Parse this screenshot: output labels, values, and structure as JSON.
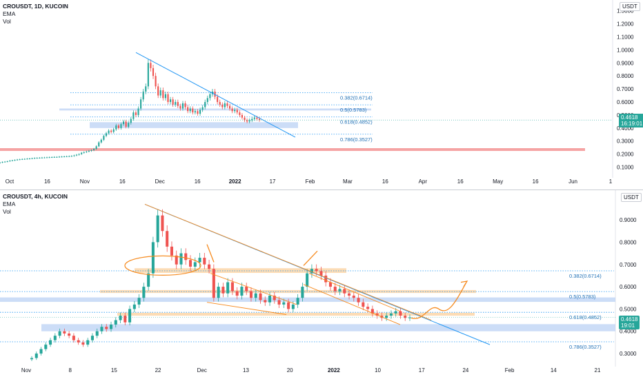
{
  "top": {
    "symbol": "CROUSDT, 1D, KUCOIN",
    "indicators": [
      "EMA",
      "Vol"
    ],
    "unit": "USDT",
    "price_tag": {
      "value": "0.4618",
      "time": "16:19:01"
    },
    "colors": {
      "up": "#26a69a",
      "down": "#ef5350",
      "trend": "#2196f3",
      "fib": "#2196f3",
      "zone": "#bfd5f5",
      "support": "#f5a3a3"
    }
  },
  "bottom": {
    "symbol": "CROUSDT, 4h, KUCOIN",
    "indicators": [
      "EMA",
      "Vol"
    ],
    "unit": "USDT",
    "price_tag": {
      "value": "0.4618",
      "time": "19:01"
    },
    "colors": {
      "up": "#26a69a",
      "down": "#ef5350",
      "trend": "#2196f3",
      "zone": "#fbd3a3",
      "orange": "#f68a1e"
    }
  },
  "chart_data": [
    {
      "type": "candlestick",
      "title": "CROUSDT, 1D, KUCOIN",
      "ylabel": "USDT",
      "y_ticks": [
        "1.3000",
        "1.2000",
        "1.1000",
        "1.0000",
        "0.9000",
        "0.8000",
        "0.7000",
        "0.6000",
        "0.5000",
        "0.4000",
        "0.3000",
        "0.2000",
        "0.1000"
      ],
      "x_ticks": [
        "Oct",
        "16",
        "Nov",
        "16",
        "Dec",
        "16",
        "2022",
        "17",
        "Feb",
        "Mar",
        "16",
        "Apr",
        "16",
        "May",
        "16",
        "Jun",
        "1"
      ],
      "ylim": [
        0.05,
        1.33
      ],
      "fib_levels": [
        {
          "label": "0.382(0.6714)",
          "value": 0.6714
        },
        {
          "label": "0.5(0.5783)",
          "value": 0.5783
        },
        {
          "label": "0.618(0.4852)",
          "value": 0.4852
        },
        {
          "label": "0.786(0.3527)",
          "value": 0.3527
        }
      ],
      "support_line": 0.235,
      "last_price": 0.4618,
      "close": [
        0.135,
        0.14,
        0.142,
        0.145,
        0.15,
        0.152,
        0.155,
        0.158,
        0.16,
        0.162,
        0.163,
        0.165,
        0.166,
        0.168,
        0.17,
        0.171,
        0.172,
        0.173,
        0.174,
        0.175,
        0.176,
        0.177,
        0.178,
        0.178,
        0.18,
        0.181,
        0.182,
        0.183,
        0.184,
        0.186,
        0.19,
        0.195,
        0.2,
        0.21,
        0.215,
        0.22,
        0.225,
        0.23,
        0.24,
        0.26,
        0.29,
        0.31,
        0.34,
        0.36,
        0.38,
        0.37,
        0.39,
        0.42,
        0.4,
        0.43,
        0.45,
        0.41,
        0.44,
        0.47,
        0.52,
        0.5,
        0.55,
        0.62,
        0.68,
        0.72,
        0.9,
        0.86,
        0.8,
        0.72,
        0.65,
        0.69,
        0.63,
        0.66,
        0.6,
        0.62,
        0.58,
        0.6,
        0.57,
        0.55,
        0.59,
        0.56,
        0.53,
        0.55,
        0.52,
        0.53,
        0.51,
        0.54,
        0.56,
        0.6,
        0.63,
        0.66,
        0.68,
        0.64,
        0.6,
        0.58,
        0.56,
        0.59,
        0.57,
        0.55,
        0.53,
        0.54,
        0.52,
        0.5,
        0.48,
        0.46,
        0.45,
        0.46,
        0.47,
        0.48,
        0.47,
        0.4618
      ]
    },
    {
      "type": "candlestick",
      "title": "CROUSDT, 4h, KUCOIN",
      "ylabel": "USDT",
      "y_ticks": [
        "0.9000",
        "0.8000",
        "0.7000",
        "0.6000",
        "0.5000",
        "0.4000",
        "0.3000"
      ],
      "x_ticks": [
        "Nov",
        "8",
        "15",
        "22",
        "Dec",
        "13",
        "20",
        "2022",
        "10",
        "17",
        "24",
        "Feb",
        "14",
        "21"
      ],
      "ylim": [
        0.26,
        0.99
      ],
      "fib_levels": [
        {
          "label": "0.382(0.6714)",
          "value": 0.6714
        },
        {
          "label": "0.5(0.5783)",
          "value": 0.5783
        },
        {
          "label": "0.618(0.4852)",
          "value": 0.4852
        },
        {
          "label": "0.786(0.3527)",
          "value": 0.3527
        }
      ],
      "last_price": 0.4618,
      "close": [
        0.28,
        0.3,
        0.32,
        0.34,
        0.36,
        0.38,
        0.4,
        0.39,
        0.38,
        0.36,
        0.35,
        0.34,
        0.36,
        0.38,
        0.4,
        0.42,
        0.41,
        0.43,
        0.45,
        0.47,
        0.44,
        0.5,
        0.52,
        0.55,
        0.6,
        0.66,
        0.8,
        0.92,
        0.85,
        0.78,
        0.74,
        0.7,
        0.75,
        0.72,
        0.69,
        0.71,
        0.73,
        0.7,
        0.68,
        0.55,
        0.6,
        0.57,
        0.62,
        0.58,
        0.56,
        0.6,
        0.58,
        0.55,
        0.57,
        0.54,
        0.53,
        0.56,
        0.54,
        0.52,
        0.53,
        0.5,
        0.52,
        0.55,
        0.6,
        0.66,
        0.68,
        0.67,
        0.65,
        0.62,
        0.6,
        0.58,
        0.59,
        0.57,
        0.56,
        0.55,
        0.53,
        0.51,
        0.5,
        0.48,
        0.47,
        0.46,
        0.47,
        0.48,
        0.49,
        0.47,
        0.46,
        0.4618
      ]
    }
  ]
}
